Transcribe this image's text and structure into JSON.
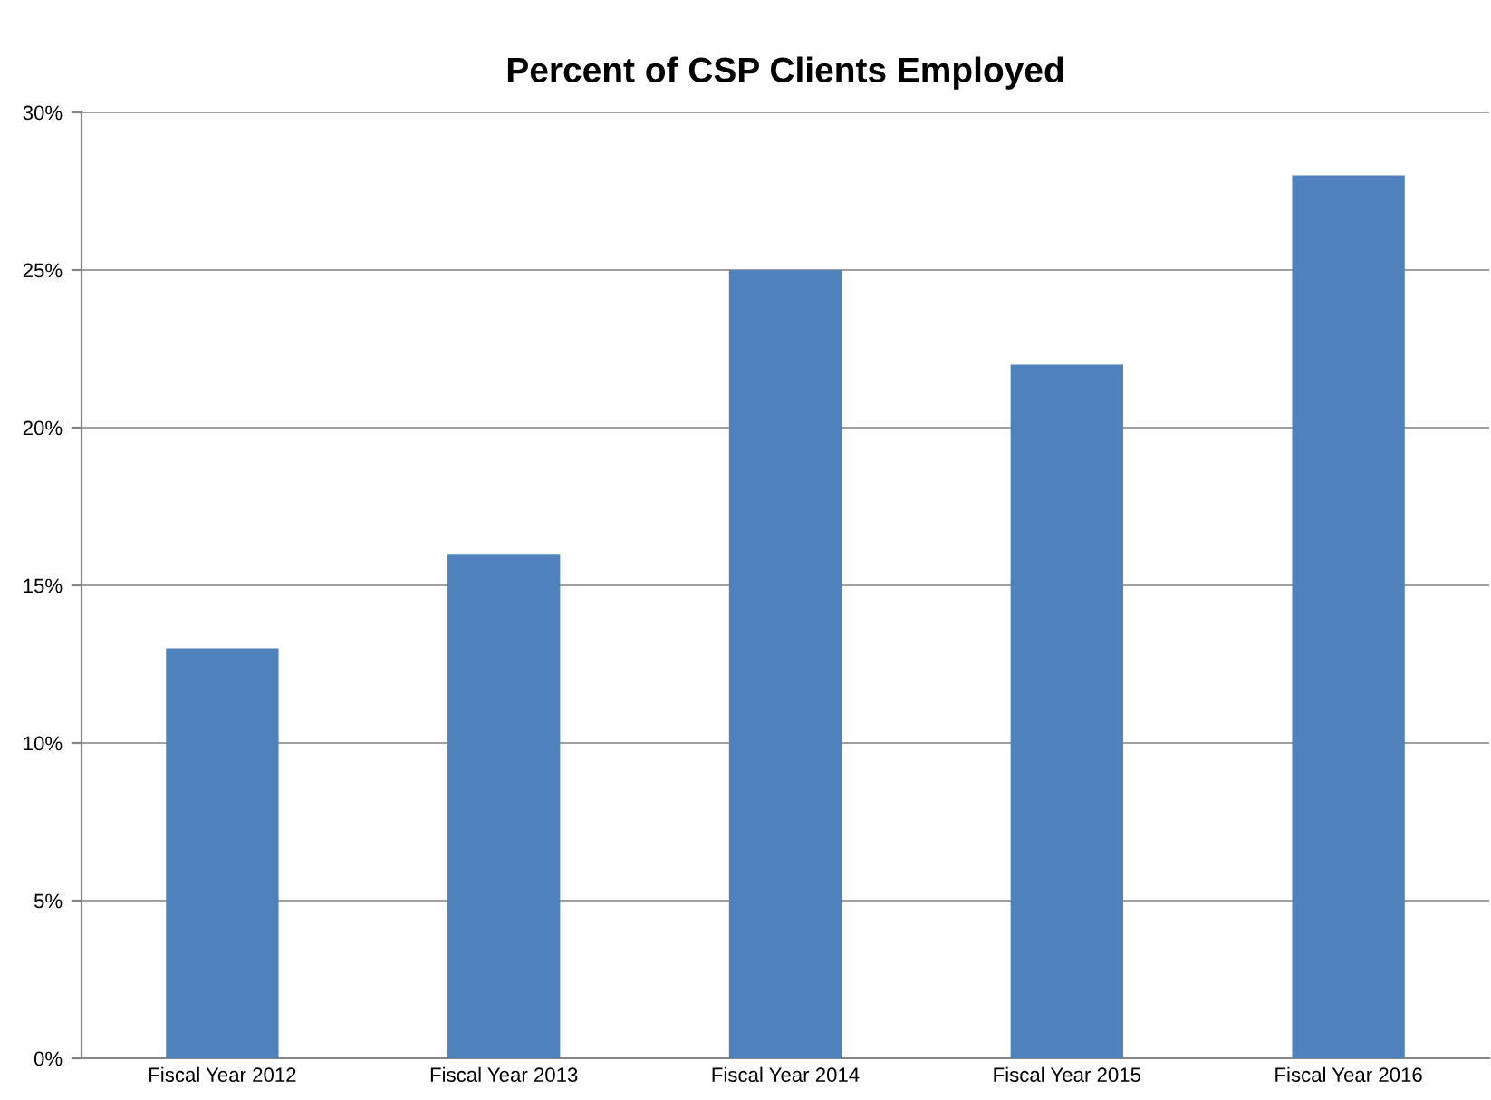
{
  "chart_data": {
    "type": "bar",
    "title": "Percent of CSP Clients Employed",
    "categories": [
      "Fiscal Year 2012",
      "Fiscal Year 2013",
      "Fiscal Year 2014",
      "Fiscal Year 2015",
      "Fiscal Year 2016"
    ],
    "values": [
      13,
      16,
      25,
      22,
      28
    ],
    "color": "#4f81bd",
    "ylim": [
      0,
      30
    ],
    "yticks": [
      {
        "value": 0,
        "label": "0%"
      },
      {
        "value": 5,
        "label": "5%"
      },
      {
        "value": 10,
        "label": "10%"
      },
      {
        "value": 15,
        "label": "15%"
      },
      {
        "value": 20,
        "label": "20%"
      },
      {
        "value": 25,
        "label": "25%"
      },
      {
        "value": 30,
        "label": "30%"
      }
    ],
    "grid": "y",
    "legend": false
  }
}
